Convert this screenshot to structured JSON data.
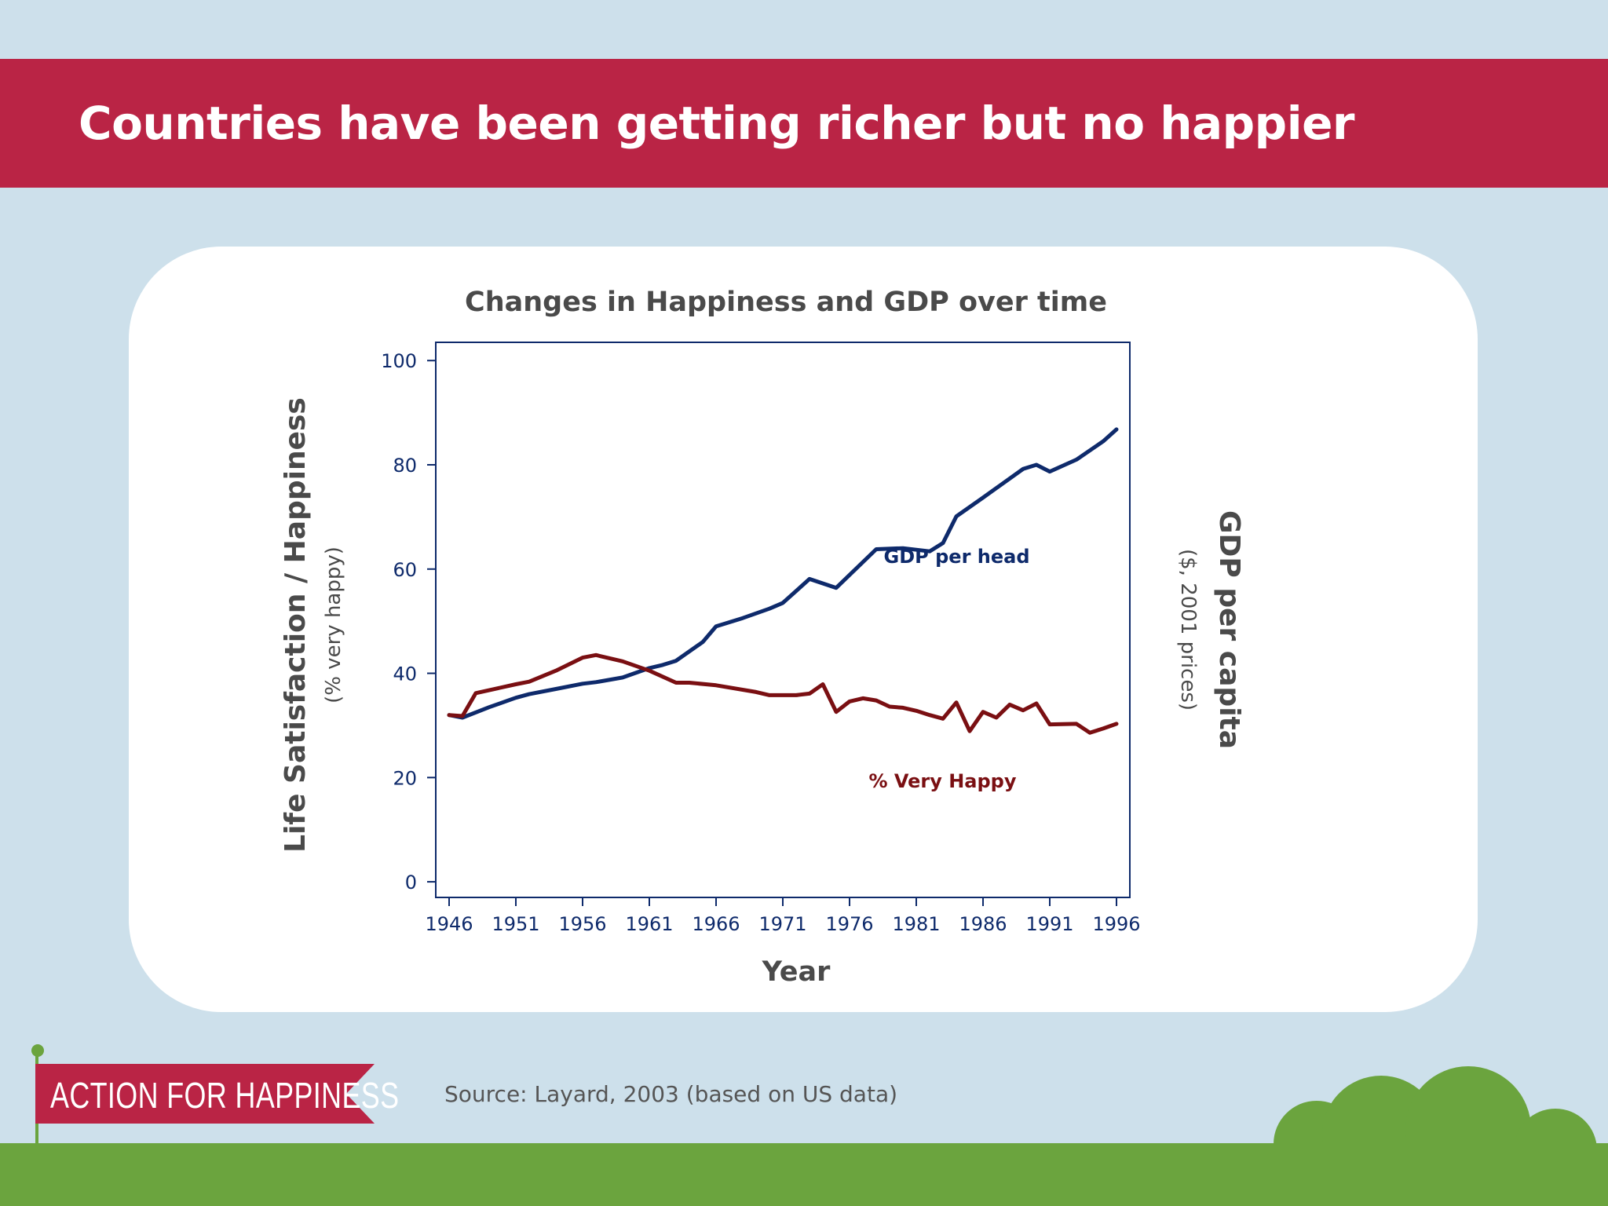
{
  "slide": {
    "headline": "Countries have been getting richer but no happier",
    "source": "Source: Layard, 2003 (based on US data)",
    "logo_text": "ACTION FOR HAPPINESS"
  },
  "colors": {
    "background": "#cde0eb",
    "banner": "#ba2445",
    "card": "#ffffff",
    "gdp_line": "#0e2a6b",
    "happy_line": "#7a0f12",
    "axis": "#0e2a6b",
    "grass": "#6ba43e"
  },
  "chart_data": {
    "type": "line",
    "title": "Changes in Happiness and GDP over time",
    "xlabel": "Year",
    "ylabel": "Life Satisfaction / Happiness",
    "ylabel_sub": "(% very happy)",
    "y2label": "GDP per capita",
    "y2label_sub": "($, 2001 prices)",
    "xlim": [
      1945,
      1997
    ],
    "ylim": [
      -3,
      103.5
    ],
    "xticks": [
      1946,
      1951,
      1956,
      1961,
      1966,
      1971,
      1976,
      1981,
      1986,
      1991,
      1996
    ],
    "yticks": [
      0,
      20,
      40,
      60,
      80,
      100
    ],
    "grid": false,
    "series": [
      {
        "name": "GDP per head",
        "color": "#0e2a6b",
        "x": [
          1946,
          1947,
          1949,
          1951,
          1952,
          1954,
          1956,
          1957,
          1959,
          1961,
          1962,
          1963,
          1965,
          1966,
          1968,
          1970,
          1971,
          1973,
          1975,
          1978,
          1980,
          1982,
          1983,
          1984,
          1986,
          1989,
          1990,
          1991,
          1993,
          1995,
          1996
        ],
        "values": [
          32,
          31.5,
          33.5,
          35.3,
          36,
          37,
          38,
          38.3,
          39.2,
          41,
          41.6,
          42.4,
          46,
          49,
          50.6,
          52.4,
          53.5,
          58.1,
          56.4,
          63.8,
          64,
          63.4,
          65,
          70.1,
          73.7,
          79.2,
          80,
          78.7,
          81,
          84.5,
          86.8
        ]
      },
      {
        "name": "% Very Happy",
        "color": "#7a0f12",
        "x": [
          1946,
          1947,
          1948,
          1951,
          1952,
          1954,
          1956,
          1957,
          1959,
          1961,
          1963,
          1964,
          1966,
          1969,
          1970,
          1972,
          1973,
          1974,
          1975,
          1976,
          1977,
          1978,
          1979,
          1980,
          1981,
          1982,
          1983,
          1984,
          1985,
          1986,
          1987,
          1988,
          1989,
          1990,
          1991,
          1993,
          1994,
          1995,
          1996
        ],
        "values": [
          32,
          31.8,
          36.2,
          37.9,
          38.4,
          40.5,
          43,
          43.5,
          42.3,
          40.5,
          38.2,
          38.2,
          37.7,
          36.4,
          35.8,
          35.8,
          36.1,
          37.9,
          32.6,
          34.6,
          35.2,
          34.8,
          33.6,
          33.4,
          32.8,
          32,
          31.3,
          34.4,
          28.9,
          32.6,
          31.5,
          34,
          32.9,
          34.2,
          30.2,
          30.3,
          28.6,
          29.4,
          30.3
        ]
      }
    ],
    "annotations": [
      {
        "text": "GDP per head",
        "x": 1989.5,
        "y": 61.2,
        "color": "#0e2a6b"
      },
      {
        "text": "% Very Happy",
        "x": 1988.5,
        "y": 18.1,
        "color": "#7a0f12"
      }
    ]
  }
}
